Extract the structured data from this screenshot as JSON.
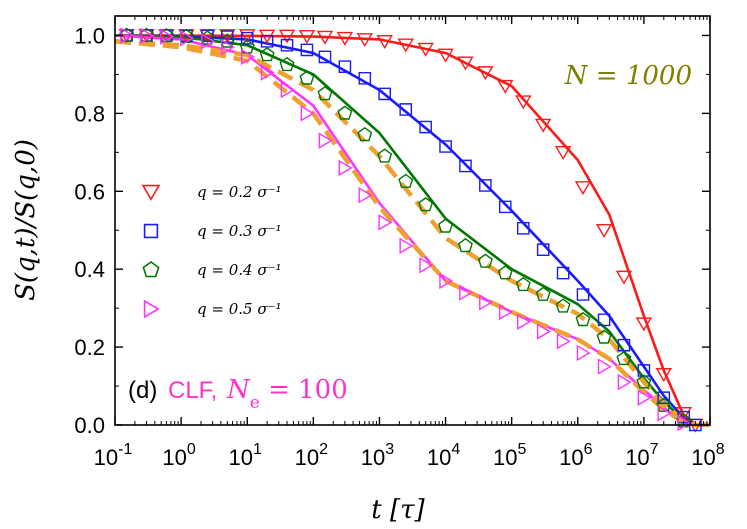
{
  "chart_data": {
    "type": "scatter",
    "xlabel": "t [τ]",
    "ylabel": "S(q,t)/S(q,0)",
    "xscale": "log",
    "xlim": [
      0.1,
      100000000
    ],
    "ylim": [
      0.0,
      1.05
    ],
    "x_ticks": [
      {
        "base": "10",
        "exp": "-1"
      },
      {
        "base": "10",
        "exp": "0"
      },
      {
        "base": "10",
        "exp": "1"
      },
      {
        "base": "10",
        "exp": "2"
      },
      {
        "base": "10",
        "exp": "3"
      },
      {
        "base": "10",
        "exp": "4"
      },
      {
        "base": "10",
        "exp": "5"
      },
      {
        "base": "10",
        "exp": "6"
      },
      {
        "base": "10",
        "exp": "7"
      },
      {
        "base": "10",
        "exp": "8"
      }
    ],
    "y_ticks": [
      "0.0",
      "0.2",
      "0.4",
      "0.6",
      "0.8",
      "1.0"
    ],
    "grid": false,
    "legend": "center-left",
    "annotations": {
      "n_label": "N = 1000",
      "n_label_color": "#808000",
      "panel_label": "(d)",
      "model_label": "CLF,",
      "ne_label": "N",
      "ne_sub": "e",
      "ne_value": " = 100",
      "model_color": "#ff33cc"
    },
    "series": [
      {
        "name": "q = 0.2 σ⁻¹",
        "marker": "triangle-down",
        "color": "#ff1a1a",
        "tau1": 3000000,
        "beta1": 0.9,
        "tau2": 40000000,
        "beta2": 2.0,
        "w1": 0.6,
        "x": [
          0.15,
          0.3,
          0.6,
          1.2,
          2.5,
          5,
          10,
          20,
          40,
          80,
          150,
          300,
          600,
          1200,
          2500,
          5000,
          10000,
          20000,
          40000,
          80000,
          150000,
          300000,
          600000,
          1200000,
          2500000,
          5000000,
          10000000,
          20000000,
          40000000,
          60000000
        ],
        "y": [
          1.0,
          1.0,
          1.0,
          1.0,
          1.0,
          1.0,
          1.0,
          0.999,
          0.999,
          0.998,
          0.996,
          0.993,
          0.99,
          0.985,
          0.976,
          0.965,
          0.95,
          0.93,
          0.905,
          0.87,
          0.83,
          0.77,
          0.7,
          0.61,
          0.5,
          0.38,
          0.26,
          0.13,
          0.03,
          0.0
        ]
      },
      {
        "name": "q = 0.3 σ⁻¹",
        "marker": "square",
        "color": "#1a1aff",
        "x": [
          0.15,
          0.3,
          0.6,
          1.2,
          2.5,
          5,
          10,
          20,
          40,
          80,
          150,
          300,
          600,
          1200,
          2500,
          5000,
          10000,
          20000,
          40000,
          80000,
          150000,
          300000,
          600000,
          1200000,
          2500000,
          5000000,
          10000000,
          20000000,
          40000000,
          60000000
        ],
        "y": [
          1.0,
          1.0,
          1.0,
          0.999,
          0.999,
          0.997,
          0.993,
          0.985,
          0.975,
          0.963,
          0.945,
          0.92,
          0.89,
          0.85,
          0.81,
          0.765,
          0.715,
          0.665,
          0.615,
          0.56,
          0.505,
          0.45,
          0.39,
          0.335,
          0.27,
          0.205,
          0.14,
          0.07,
          0.02,
          0.0
        ]
      },
      {
        "name": "q = 0.4 σ⁻¹",
        "marker": "pentagon",
        "color": "#007700",
        "x": [
          0.15,
          0.3,
          0.6,
          1.2,
          2.5,
          5,
          10,
          20,
          40,
          80,
          150,
          300,
          600,
          1200,
          2500,
          5000,
          10000,
          20000,
          40000,
          80000,
          150000,
          300000,
          600000,
          1200000,
          2500000,
          5000000,
          10000000,
          20000000,
          40000000
        ],
        "y": [
          1.0,
          1.0,
          0.999,
          0.997,
          0.993,
          0.985,
          0.97,
          0.95,
          0.925,
          0.89,
          0.85,
          0.8,
          0.745,
          0.69,
          0.625,
          0.565,
          0.51,
          0.46,
          0.42,
          0.39,
          0.36,
          0.335,
          0.305,
          0.27,
          0.225,
          0.17,
          0.11,
          0.05,
          0.01
        ]
      },
      {
        "name": "q = 0.5 σ⁻¹",
        "marker": "triangle-right",
        "color": "#ff33ff",
        "x": [
          0.15,
          0.3,
          0.6,
          1.2,
          2.5,
          5,
          10,
          20,
          40,
          80,
          150,
          300,
          600,
          1200,
          2500,
          5000,
          10000,
          20000,
          40000,
          80000,
          150000,
          300000,
          600000,
          1200000,
          2500000,
          5000000,
          10000000,
          20000000,
          40000000
        ],
        "y": [
          1.0,
          0.999,
          0.997,
          0.993,
          0.985,
          0.97,
          0.945,
          0.905,
          0.86,
          0.8,
          0.73,
          0.66,
          0.59,
          0.52,
          0.46,
          0.41,
          0.37,
          0.34,
          0.315,
          0.29,
          0.265,
          0.24,
          0.215,
          0.185,
          0.15,
          0.11,
          0.07,
          0.03,
          0.005
        ]
      }
    ],
    "fit_curves": [
      {
        "color": "#ff1a1a",
        "style": "solid",
        "x": [
          0.1,
          1,
          10,
          100,
          1000,
          10000,
          100000,
          1000000,
          3000000,
          10000000,
          20000000,
          40000000,
          60000000,
          100000000
        ],
        "y": [
          1.0,
          1.0,
          0.999,
          0.997,
          0.99,
          0.955,
          0.87,
          0.68,
          0.54,
          0.28,
          0.14,
          0.025,
          0.002,
          0.0
        ]
      },
      {
        "color": "#1a1aff",
        "style": "solid",
        "x": [
          0.1,
          1,
          10,
          100,
          1000,
          10000,
          100000,
          1000000,
          3000000,
          10000000,
          20000000,
          40000000,
          60000000,
          100000000
        ],
        "y": [
          1.0,
          0.998,
          0.99,
          0.955,
          0.86,
          0.72,
          0.55,
          0.37,
          0.28,
          0.15,
          0.075,
          0.018,
          0.002,
          0.0
        ]
      },
      {
        "color": "#007700",
        "style": "solid",
        "x": [
          0.1,
          1,
          10,
          100,
          1000,
          10000,
          100000,
          1000000,
          3000000,
          10000000,
          20000000,
          40000000,
          60000000,
          100000000
        ],
        "y": [
          1.0,
          0.996,
          0.975,
          0.9,
          0.75,
          0.53,
          0.4,
          0.31,
          0.24,
          0.12,
          0.06,
          0.012,
          0.001,
          0.0
        ]
      },
      {
        "color": "#ff33ff",
        "style": "solid",
        "x": [
          0.1,
          1,
          10,
          100,
          1000,
          10000,
          100000,
          1000000,
          3000000,
          10000000,
          20000000,
          40000000,
          60000000,
          100000000
        ],
        "y": [
          1.0,
          0.99,
          0.95,
          0.82,
          0.57,
          0.37,
          0.29,
          0.22,
          0.17,
          0.09,
          0.045,
          0.008,
          0.001,
          0.0
        ]
      },
      {
        "color": "#f0a030",
        "style": "dashed",
        "x": [
          0.1,
          1,
          10,
          100,
          1000,
          10000,
          100000,
          1000000,
          3000000,
          10000000,
          20000000,
          40000000,
          60000000,
          100000000
        ],
        "y": [
          0.985,
          0.975,
          0.95,
          0.86,
          0.69,
          0.48,
          0.37,
          0.285,
          0.22,
          0.11,
          0.055,
          0.01,
          0.001,
          0.0
        ]
      },
      {
        "color": "#f0a030",
        "style": "dashed",
        "x": [
          0.1,
          1,
          10,
          100,
          1000,
          10000,
          100000,
          1000000,
          3000000,
          10000000,
          20000000,
          40000000,
          60000000,
          100000000
        ],
        "y": [
          0.985,
          0.97,
          0.935,
          0.8,
          0.56,
          0.37,
          0.29,
          0.22,
          0.17,
          0.085,
          0.04,
          0.007,
          0.001,
          0.0
        ]
      }
    ]
  }
}
